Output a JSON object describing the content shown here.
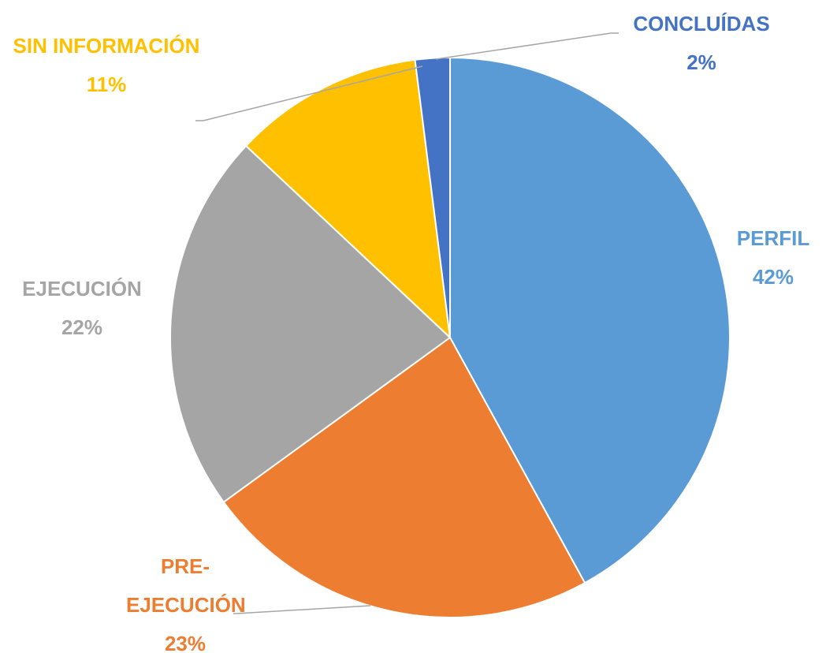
{
  "chart_data": {
    "type": "pie",
    "categories": [
      "PERFIL",
      "PRE-EJECUCIÓN",
      "EJECUCIÓN",
      "SIN INFORMACIÓN",
      "CONCLUÍDAS"
    ],
    "values": [
      42,
      23,
      22,
      11,
      2
    ],
    "value_labels": [
      "42%",
      "23%",
      "22%",
      "11%",
      "2%"
    ],
    "colors": [
      "#5b9bd5",
      "#ed7d31",
      "#a5a5a5",
      "#ffc000",
      "#4472c4"
    ]
  }
}
